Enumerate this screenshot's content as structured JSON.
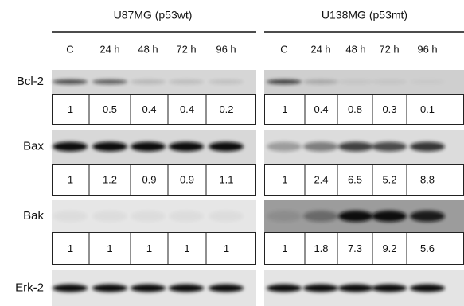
{
  "panels": [
    {
      "title": "U87MG (p53wt)",
      "lanes": [
        "C",
        "24 h",
        "48 h",
        "72 h",
        "96 h"
      ]
    },
    {
      "title": "U138MG (p53mt)",
      "lanes": [
        "C",
        "24 h",
        "48 h",
        "72 h",
        "96 h"
      ]
    }
  ],
  "rows": [
    {
      "label": "Bcl-2",
      "values": [
        [
          1,
          0.5,
          0.4,
          0.4,
          0.2
        ],
        [
          1,
          0.4,
          0.8,
          0.3,
          0.1
        ]
      ]
    },
    {
      "label": "Bax",
      "values": [
        [
          1,
          1.2,
          0.9,
          0.9,
          1.1
        ],
        [
          1,
          2.4,
          6.5,
          5.2,
          8.8
        ]
      ]
    },
    {
      "label": "Bak",
      "values": [
        [
          1,
          1,
          1,
          1,
          1
        ],
        [
          1,
          1.8,
          7.3,
          9.2,
          5.6
        ]
      ]
    },
    {
      "label": "Erk-2"
    }
  ]
}
